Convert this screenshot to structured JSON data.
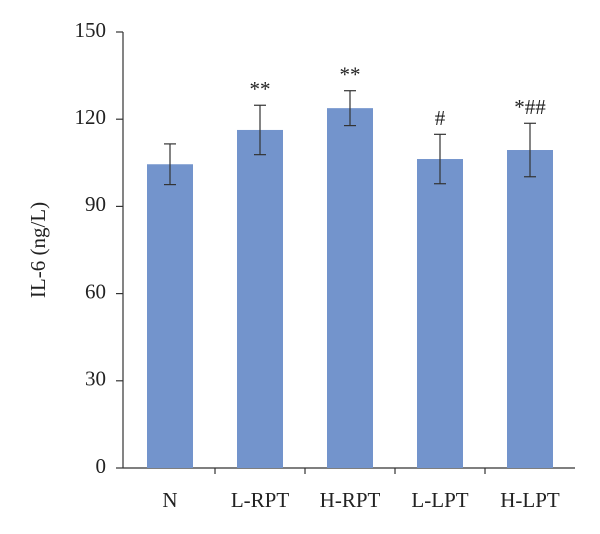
{
  "chart_data": {
    "type": "bar",
    "y_label": "IL-6 (ng/L)",
    "categories": [
      "N",
      "L-RPT",
      "H-RPT",
      "L-LPT",
      "H-LPT"
    ],
    "values": [
      104.5,
      116.3,
      123.8,
      106.3,
      109.4
    ],
    "errors": [
      7,
      8.5,
      6,
      8.5,
      9.2
    ],
    "annotations": [
      null,
      "**",
      "**",
      "#",
      "*##"
    ],
    "color": "#7394cc",
    "ylim": [
      0,
      150
    ],
    "yticks": [
      0,
      30,
      60,
      90,
      120,
      150
    ],
    "grid": false
  }
}
